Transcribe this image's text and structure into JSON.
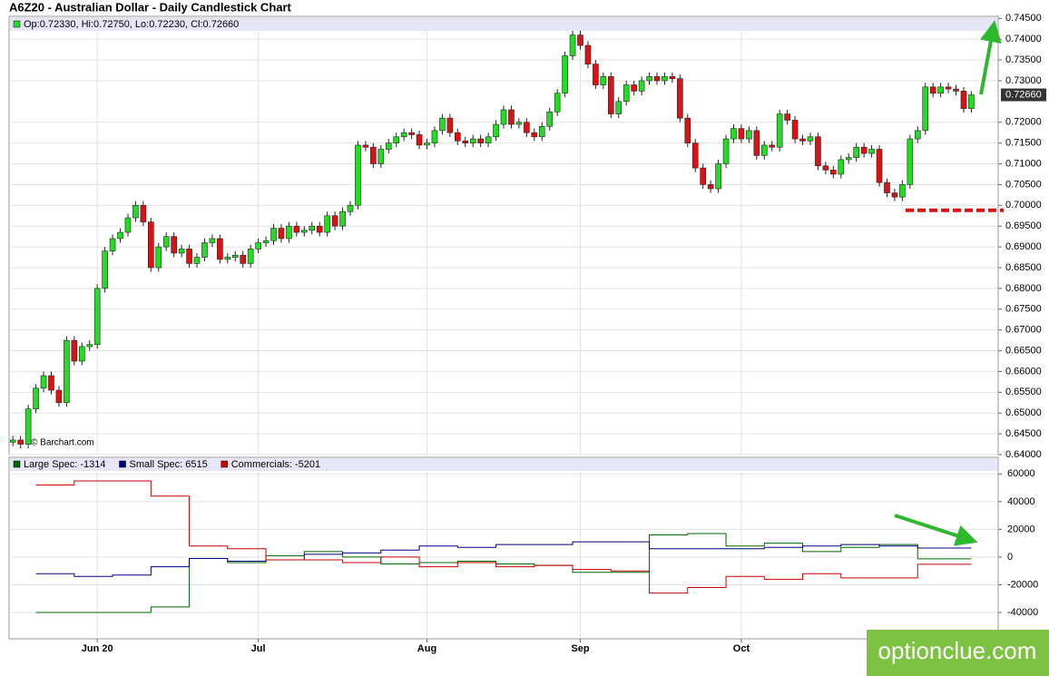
{
  "chart_data": [
    {
      "type": "candlestick",
      "title": "A6Z20 - Australian Dollar - Daily Candlestick Chart",
      "ohlc_label": "Op:0.72330, Hi:0.72750, Lo:0.72230, Cl:0.72660",
      "source": "© Barchart.com",
      "open": [
        0.643,
        0.6435,
        0.6425,
        0.651,
        0.656,
        0.659,
        0.6555,
        0.6525,
        0.6675,
        0.6625,
        0.666,
        0.6665,
        0.68,
        0.689,
        0.692,
        0.6935,
        0.697,
        0.7,
        0.696,
        0.685,
        0.69,
        0.6925,
        0.6885,
        0.6895,
        0.686,
        0.6875,
        0.691,
        0.692,
        0.687,
        0.6875,
        0.688,
        0.686,
        0.6895,
        0.691,
        0.6915,
        0.6945,
        0.692,
        0.695,
        0.6935,
        0.694,
        0.695,
        0.6935,
        0.6975,
        0.695,
        0.6985,
        0.7,
        0.7145,
        0.714,
        0.71,
        0.7135,
        0.715,
        0.7165,
        0.7175,
        0.717,
        0.7145,
        0.715,
        0.718,
        0.721,
        0.7175,
        0.7155,
        0.715,
        0.716,
        0.715,
        0.7165,
        0.7195,
        0.723,
        0.7195,
        0.72,
        0.7175,
        0.7165,
        0.719,
        0.7225,
        0.727,
        0.736,
        0.741,
        0.7385,
        0.734,
        0.729,
        0.731,
        0.722,
        0.725,
        0.729,
        0.7275,
        0.73,
        0.731,
        0.73,
        0.731,
        0.7305,
        0.721,
        0.715,
        0.709,
        0.705,
        0.704,
        0.71,
        0.716,
        0.7185,
        0.716,
        0.718,
        0.712,
        0.7145,
        0.714,
        0.722,
        0.7205,
        0.716,
        0.7155,
        0.7165,
        0.7095,
        0.7085,
        0.7075,
        0.711,
        0.7115,
        0.714,
        0.7125,
        0.7135,
        0.7055,
        0.703,
        0.702,
        0.705,
        0.716,
        0.718,
        0.7285,
        0.727,
        0.7285,
        0.728,
        0.7275,
        0.7233
      ],
      "high": [
        0.6445,
        0.6445,
        0.652,
        0.657,
        0.66,
        0.66,
        0.6565,
        0.6685,
        0.6685,
        0.667,
        0.6675,
        0.681,
        0.69,
        0.693,
        0.6945,
        0.698,
        0.701,
        0.701,
        0.697,
        0.691,
        0.6935,
        0.6935,
        0.6905,
        0.6905,
        0.6885,
        0.692,
        0.693,
        0.693,
        0.6885,
        0.689,
        0.689,
        0.6905,
        0.692,
        0.6925,
        0.6955,
        0.6955,
        0.696,
        0.696,
        0.695,
        0.696,
        0.696,
        0.6985,
        0.6985,
        0.6995,
        0.701,
        0.7155,
        0.7155,
        0.715,
        0.7145,
        0.716,
        0.7175,
        0.7185,
        0.7185,
        0.718,
        0.716,
        0.719,
        0.722,
        0.722,
        0.7185,
        0.7165,
        0.717,
        0.717,
        0.7175,
        0.7205,
        0.724,
        0.724,
        0.721,
        0.721,
        0.7185,
        0.72,
        0.7235,
        0.728,
        0.737,
        0.742,
        0.742,
        0.7395,
        0.735,
        0.732,
        0.732,
        0.726,
        0.73,
        0.73,
        0.731,
        0.732,
        0.732,
        0.732,
        0.732,
        0.7315,
        0.722,
        0.716,
        0.71,
        0.706,
        0.711,
        0.717,
        0.7195,
        0.7195,
        0.719,
        0.719,
        0.7155,
        0.7155,
        0.723,
        0.723,
        0.7215,
        0.717,
        0.7175,
        0.7175,
        0.7105,
        0.7095,
        0.712,
        0.7125,
        0.715,
        0.715,
        0.7145,
        0.7145,
        0.7065,
        0.704,
        0.706,
        0.717,
        0.719,
        0.7295,
        0.7295,
        0.7295,
        0.7295,
        0.729,
        0.7285,
        0.7275
      ],
      "low": [
        0.642,
        0.6415,
        0.6415,
        0.65,
        0.655,
        0.6545,
        0.6515,
        0.6515,
        0.6615,
        0.6615,
        0.665,
        0.6655,
        0.679,
        0.688,
        0.691,
        0.6925,
        0.696,
        0.695,
        0.684,
        0.684,
        0.689,
        0.6875,
        0.6875,
        0.685,
        0.685,
        0.6865,
        0.69,
        0.686,
        0.686,
        0.6865,
        0.685,
        0.685,
        0.6885,
        0.69,
        0.6905,
        0.691,
        0.691,
        0.6925,
        0.6925,
        0.693,
        0.6925,
        0.6925,
        0.694,
        0.694,
        0.6975,
        0.699,
        0.713,
        0.709,
        0.709,
        0.7125,
        0.714,
        0.7155,
        0.716,
        0.7135,
        0.7135,
        0.714,
        0.717,
        0.7165,
        0.7145,
        0.714,
        0.714,
        0.714,
        0.714,
        0.7155,
        0.7185,
        0.7185,
        0.7185,
        0.7165,
        0.7155,
        0.7155,
        0.718,
        0.7215,
        0.726,
        0.735,
        0.7375,
        0.733,
        0.728,
        0.728,
        0.721,
        0.721,
        0.724,
        0.7265,
        0.7265,
        0.729,
        0.729,
        0.729,
        0.7295,
        0.72,
        0.714,
        0.708,
        0.704,
        0.703,
        0.703,
        0.709,
        0.715,
        0.715,
        0.715,
        0.711,
        0.711,
        0.713,
        0.713,
        0.7195,
        0.715,
        0.7145,
        0.7145,
        0.7085,
        0.7075,
        0.7065,
        0.7065,
        0.71,
        0.7105,
        0.7115,
        0.7115,
        0.7045,
        0.702,
        0.701,
        0.701,
        0.704,
        0.715,
        0.717,
        0.726,
        0.726,
        0.727,
        0.7265,
        0.7223,
        0.7223
      ],
      "close": [
        0.6435,
        0.6425,
        0.651,
        0.656,
        0.659,
        0.6555,
        0.6525,
        0.6675,
        0.6625,
        0.666,
        0.6665,
        0.68,
        0.689,
        0.692,
        0.6935,
        0.697,
        0.7,
        0.696,
        0.685,
        0.69,
        0.6925,
        0.6885,
        0.6895,
        0.686,
        0.6875,
        0.691,
        0.692,
        0.687,
        0.6875,
        0.688,
        0.686,
        0.6895,
        0.691,
        0.6915,
        0.6945,
        0.692,
        0.695,
        0.6935,
        0.694,
        0.695,
        0.6935,
        0.6975,
        0.695,
        0.6985,
        0.7,
        0.7145,
        0.714,
        0.71,
        0.7135,
        0.715,
        0.7165,
        0.7175,
        0.717,
        0.7145,
        0.715,
        0.718,
        0.721,
        0.7175,
        0.7155,
        0.715,
        0.716,
        0.715,
        0.7165,
        0.7195,
        0.723,
        0.7195,
        0.72,
        0.7175,
        0.7165,
        0.719,
        0.7225,
        0.727,
        0.736,
        0.741,
        0.7385,
        0.734,
        0.729,
        0.731,
        0.722,
        0.725,
        0.729,
        0.7275,
        0.73,
        0.731,
        0.73,
        0.731,
        0.7305,
        0.721,
        0.715,
        0.709,
        0.705,
        0.704,
        0.71,
        0.716,
        0.7185,
        0.716,
        0.718,
        0.712,
        0.7145,
        0.714,
        0.722,
        0.7205,
        0.716,
        0.7155,
        0.7165,
        0.7095,
        0.7085,
        0.7075,
        0.711,
        0.7115,
        0.714,
        0.7125,
        0.7135,
        0.7055,
        0.703,
        0.702,
        0.705,
        0.716,
        0.718,
        0.7285,
        0.727,
        0.7285,
        0.728,
        0.7275,
        0.7233,
        0.7266
      ],
      "up_color": "#22dd22",
      "down_color": "#dd1111",
      "xlim": [
        -0.5,
        128.5
      ],
      "ylim": [
        0.64,
        0.7455
      ],
      "yticks": [
        {
          "value": 0.64,
          "label": "0.64000"
        },
        {
          "value": 0.645,
          "label": "0.64500"
        },
        {
          "value": 0.65,
          "label": "0.65000"
        },
        {
          "value": 0.655,
          "label": "0.65500"
        },
        {
          "value": 0.66,
          "label": "0.66000"
        },
        {
          "value": 0.665,
          "label": "0.66500"
        },
        {
          "value": 0.67,
          "label": "0.67000"
        },
        {
          "value": 0.675,
          "label": "0.67500"
        },
        {
          "value": 0.68,
          "label": "0.68000"
        },
        {
          "value": 0.685,
          "label": "0.68500"
        },
        {
          "value": 0.69,
          "label": "0.69000"
        },
        {
          "value": 0.695,
          "label": "0.69500"
        },
        {
          "value": 0.7,
          "label": "0.70000"
        },
        {
          "value": 0.705,
          "label": "0.70500"
        },
        {
          "value": 0.71,
          "label": "0.71000"
        },
        {
          "value": 0.715,
          "label": "0.71500"
        },
        {
          "value": 0.72,
          "label": "0.72000"
        },
        {
          "value": 0.73,
          "label": "0.73000"
        },
        {
          "value": 0.735,
          "label": "0.73500"
        },
        {
          "value": 0.74,
          "label": "0.74000"
        },
        {
          "value": 0.745,
          "label": "0.74500"
        }
      ],
      "last_price": {
        "value": 0.7266,
        "label": "0.72660"
      },
      "support_level": 0.6988,
      "grid": true
    },
    {
      "type": "step",
      "x": [
        3,
        8,
        13,
        18,
        23,
        28,
        33,
        38,
        43,
        48,
        53,
        58,
        63,
        68,
        73,
        78,
        83,
        88,
        93,
        98,
        103,
        108,
        113,
        118
      ],
      "series": [
        {
          "name": "Large Spec: -1314",
          "color": "#006600",
          "values": [
            -40000,
            -40000,
            -40000,
            -36000,
            -1000,
            -4000,
            1000,
            4000,
            0,
            -5000,
            -4000,
            -3000,
            -5000,
            -6000,
            -11000,
            -11000,
            16000,
            17000,
            8000,
            10000,
            4000,
            7000,
            9000,
            -1314
          ]
        },
        {
          "name": "Small Spec: 6515",
          "color": "#000080",
          "values": [
            -12000,
            -14000,
            -13000,
            -7000,
            -1000,
            -3000,
            -2000,
            2000,
            3000,
            5000,
            8000,
            7000,
            9000,
            9000,
            11000,
            11000,
            6000,
            6000,
            6000,
            7000,
            8000,
            9000,
            8000,
            6515
          ]
        },
        {
          "name": "Commercials: -5201",
          "color": "#cc0000",
          "values": [
            52000,
            55000,
            55000,
            44000,
            8000,
            6000,
            -2000,
            -2000,
            -4000,
            0,
            -7000,
            -4000,
            -7000,
            -6000,
            -9000,
            -10000,
            -26000,
            -22000,
            -14000,
            -16000,
            -12000,
            -15000,
            -15000,
            -5201
          ]
        }
      ],
      "xlim": [
        -0.5,
        128.5
      ],
      "xticks": [
        {
          "value": 11,
          "label": "Jun 20"
        },
        {
          "value": 32,
          "label": "Jul"
        },
        {
          "value": 54,
          "label": "Aug"
        },
        {
          "value": 74,
          "label": "Sep"
        },
        {
          "value": 95,
          "label": "Oct"
        }
      ],
      "ylim": [
        -59000,
        72000
      ],
      "yticks": [
        60000,
        40000,
        20000,
        0,
        -20000,
        -40000
      ],
      "grid": true
    }
  ],
  "watermark": "optionclue.com"
}
